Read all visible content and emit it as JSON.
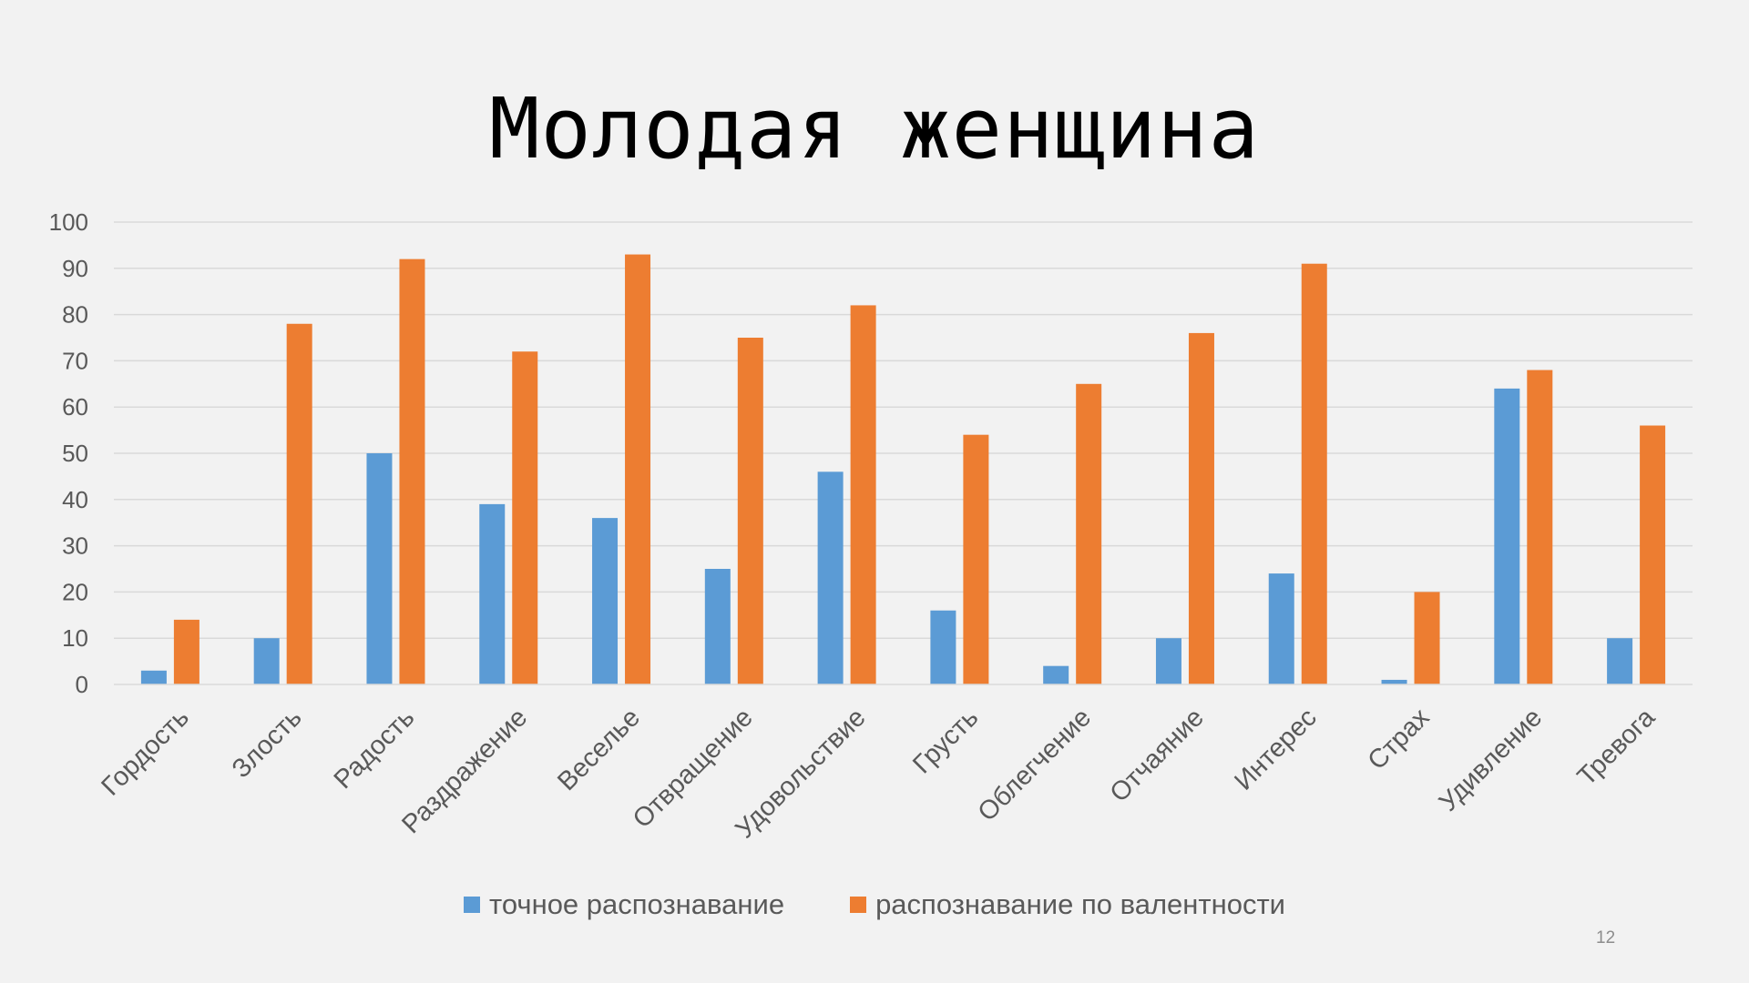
{
  "slide": {
    "title": "Молодая женщина",
    "page_number": "12"
  },
  "chart_data": {
    "type": "bar",
    "title": "Молодая женщина",
    "xlabel": "",
    "ylabel": "",
    "ylim": [
      0,
      100
    ],
    "yticks": [
      0,
      10,
      20,
      30,
      40,
      50,
      60,
      70,
      80,
      90,
      100
    ],
    "grid": true,
    "legend_position": "bottom",
    "categories": [
      "Гордость",
      "Злость",
      "Радость",
      "Раздражение",
      "Веселье",
      "Отвращение",
      "Удовольствие",
      "Грусть",
      "Облегчение",
      "Отчаяние",
      "Интерес",
      "Страх",
      "Удивление",
      "Тревога"
    ],
    "series": [
      {
        "name": "точное распознавание",
        "color": "#5b9bd5",
        "values": [
          3,
          10,
          50,
          39,
          36,
          25,
          46,
          16,
          4,
          10,
          24,
          1,
          64,
          10
        ]
      },
      {
        "name": "распознавание по валентности",
        "color": "#ed7d31",
        "values": [
          14,
          78,
          92,
          72,
          93,
          75,
          82,
          54,
          65,
          76,
          91,
          20,
          68,
          56
        ]
      }
    ]
  }
}
